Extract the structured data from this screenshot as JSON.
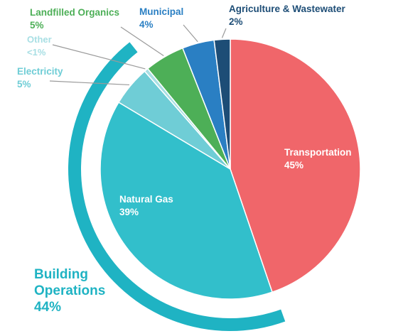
{
  "chart_data": {
    "type": "pie",
    "title": "",
    "slices": [
      {
        "label": "Transportation",
        "value_label": "45%",
        "value": 45,
        "color": "#f0666a"
      },
      {
        "label": "Natural Gas",
        "value_label": "39%",
        "value": 39,
        "color": "#32bfcb"
      },
      {
        "label": "Electricity",
        "value_label": "5%",
        "value": 5,
        "color": "#6fcdd6"
      },
      {
        "label": "Other",
        "value_label": "<1%",
        "value": 0.5,
        "color": "#a8dfe4"
      },
      {
        "label": "Landfilled Organics",
        "value_label": "5%",
        "value": 5,
        "color": "#4daf57"
      },
      {
        "label": "Municipal",
        "value_label": "4%",
        "value": 4,
        "color": "#2a7fc3"
      },
      {
        "label": "Agriculture & Wastewater",
        "value_label": "2%",
        "value": 2,
        "color": "#1d4d76"
      }
    ],
    "group": {
      "label_line1": "Building",
      "label_line2": "Operations",
      "value_label": "44%",
      "members": [
        "Natural Gas",
        "Electricity",
        "Other"
      ],
      "color": "#1fb3c3"
    }
  }
}
